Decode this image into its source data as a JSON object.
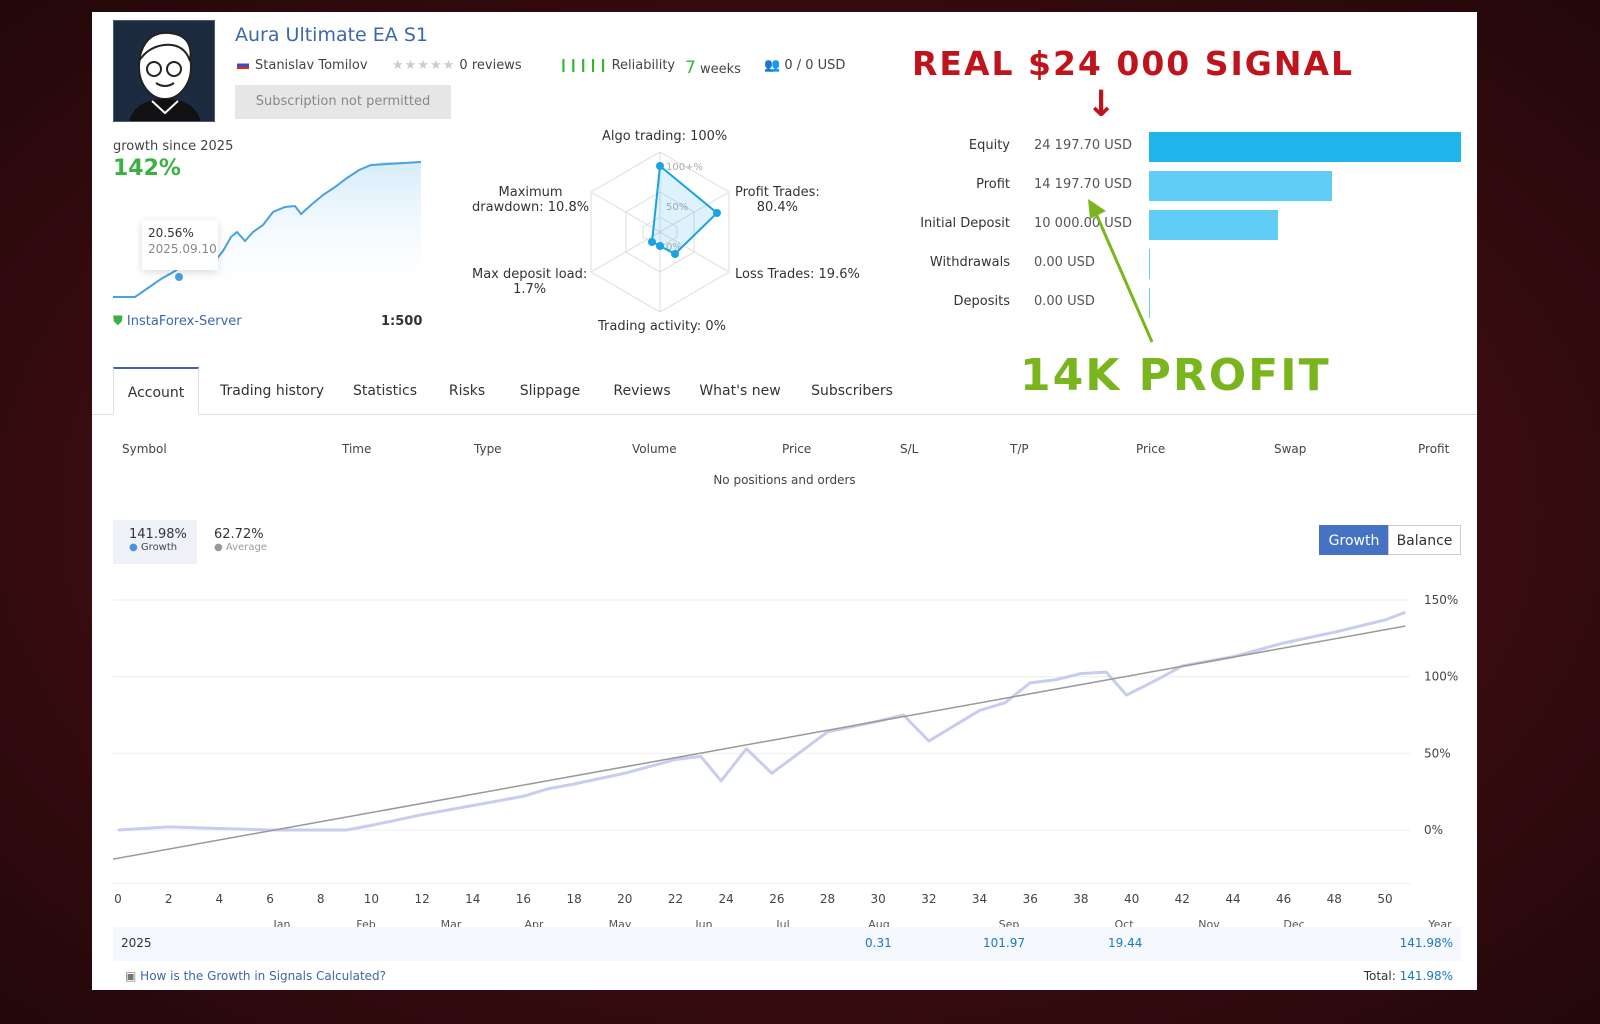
{
  "header": {
    "title": "Aura Ultimate EA S1",
    "author": "Stanislav Tomilov",
    "reviews": "0 reviews",
    "reliability": "Reliability",
    "weeks_num": "7",
    "weeks_label": "weeks",
    "subscribers": "0 / 0 USD",
    "subscribe_button": "Subscription not permitted"
  },
  "growth_mini": {
    "label": "growth since 2025",
    "value": "142%",
    "tooltip_value": "20.56%",
    "tooltip_date": "2025.09.10",
    "server": "InstaForex-Server",
    "leverage": "1:500"
  },
  "radar": {
    "algo": "Algo trading: 100%",
    "profit": "Profit Trades:",
    "profit_val": "80.4%",
    "loss": "Loss Trades: 19.6%",
    "activity": "Trading activity: 0%",
    "load": "Max deposit load:",
    "load_val": "1.7%",
    "dd": "Maximum",
    "dd_val": "drawdown: 10.8%",
    "ring100": "100+%",
    "ring50": "50%",
    "ring0": "0%",
    "values": {
      "algo_trading": 100,
      "profit_trades": 80.4,
      "loss_trades": 19.6,
      "trading_activity": 0,
      "max_deposit_load": 1.7,
      "max_drawdown": 10.8
    }
  },
  "balances": [
    {
      "label": "Equity",
      "value": "24 197.70 USD",
      "amount": 24197.7,
      "color": "#1fb4ea"
    },
    {
      "label": "Profit",
      "value": "14 197.70 USD",
      "amount": 14197.7,
      "color": "#5fcdf5"
    },
    {
      "label": "Initial Deposit",
      "value": "10 000.00 USD",
      "amount": 10000,
      "color": "#5fcdf5"
    },
    {
      "label": "Withdrawals",
      "value": "0.00 USD",
      "amount": 0,
      "color": "#5fcdf5"
    },
    {
      "label": "Deposits",
      "value": "0.00 USD",
      "amount": 0,
      "color": "#5fcdf5"
    }
  ],
  "annotations": {
    "top": "REAL $24 000 SIGNAL",
    "arrow": "↓",
    "bottom": "14K PROFIT"
  },
  "tabs": [
    "Account",
    "Trading history",
    "Statistics",
    "Risks",
    "Slippage",
    "Reviews",
    "What's new",
    "Subscribers"
  ],
  "table": {
    "headers": [
      "Symbol",
      "Time",
      "Type",
      "Volume",
      "Price",
      "S/L",
      "T/P",
      "Price",
      "Swap",
      "Profit"
    ],
    "empty": "No positions and orders"
  },
  "chart_summary": {
    "growth_value": "141.98%",
    "growth_label": "Growth",
    "avg_value": "62.72%",
    "avg_label": "Average",
    "btn_growth": "Growth",
    "btn_balance": "Balance"
  },
  "chart_data": {
    "type": "line",
    "ylim": [
      -35,
      160
    ],
    "xlim": [
      0,
      51.5
    ],
    "y_ticks": [
      "150%",
      "100%",
      "50%",
      "0%"
    ],
    "y_tick_values": [
      150,
      100,
      50,
      0
    ],
    "x_ticks": [
      0,
      2,
      4,
      6,
      8,
      10,
      12,
      14,
      16,
      18,
      20,
      22,
      24,
      26,
      28,
      30,
      32,
      34,
      36,
      38,
      40,
      42,
      44,
      46,
      48,
      50
    ],
    "month_labels": [
      "Jan",
      "Feb",
      "Mar",
      "Apr",
      "May",
      "Jun",
      "Jul",
      "Aug",
      "Sep",
      "Oct",
      "Nov",
      "Dec",
      "Year"
    ],
    "series": [
      {
        "name": "Growth",
        "color": "#c8cdf0",
        "points": [
          [
            0,
            0
          ],
          [
            2,
            2
          ],
          [
            4,
            1
          ],
          [
            6,
            0
          ],
          [
            8,
            0
          ],
          [
            9,
            0
          ],
          [
            10,
            3
          ],
          [
            12,
            10
          ],
          [
            14,
            16
          ],
          [
            16,
            22
          ],
          [
            17,
            27
          ],
          [
            18,
            30
          ],
          [
            20,
            37
          ],
          [
            22,
            46
          ],
          [
            23,
            48
          ],
          [
            23.8,
            32
          ],
          [
            24.8,
            53
          ],
          [
            25.8,
            37
          ],
          [
            28,
            64
          ],
          [
            30,
            71
          ],
          [
            31,
            75
          ],
          [
            32,
            58
          ],
          [
            34,
            78
          ],
          [
            35,
            83
          ],
          [
            36,
            96
          ],
          [
            37,
            98
          ],
          [
            38,
            102
          ],
          [
            39,
            103
          ],
          [
            39.8,
            88
          ],
          [
            41,
            98
          ],
          [
            42,
            107
          ],
          [
            44,
            113
          ],
          [
            46,
            122
          ],
          [
            48,
            129
          ],
          [
            50,
            137
          ],
          [
            50.8,
            142
          ]
        ]
      },
      {
        "name": "Average",
        "color": "#999999",
        "points": [
          [
            0,
            -19
          ],
          [
            50.8,
            133
          ]
        ]
      }
    ]
  },
  "year_row": {
    "year": "2025",
    "aug": "0.31",
    "sep": "101.97",
    "oct": "19.44",
    "total": "141.98%"
  },
  "footer": {
    "link": "How is the Growth in Signals Calculated?",
    "total_label": "Total:",
    "total_value": "141.98%"
  }
}
